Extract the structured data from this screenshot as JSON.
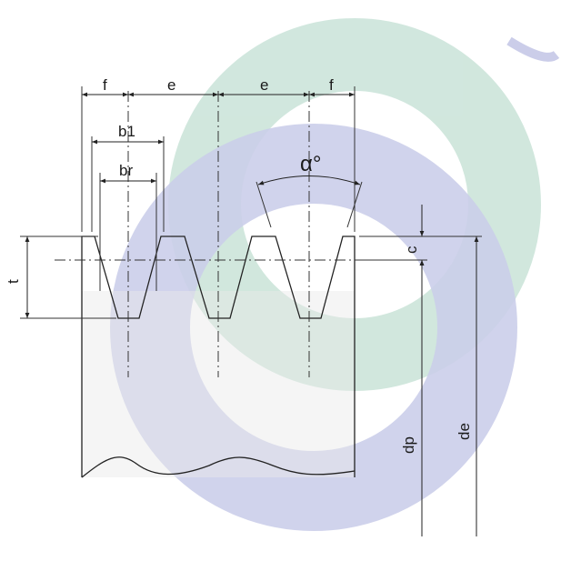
{
  "labels": {
    "f_left": "f",
    "e_left": "e",
    "e_right": "e",
    "f_right": "f",
    "b1": "b1",
    "br": "br",
    "alpha": "α°",
    "t": "t",
    "c": "c",
    "dp": "dp",
    "de": "de"
  },
  "colors": {
    "watermark_teal": "#c9e3d8",
    "watermark_blue": "#c2c5e6",
    "line": "#222222"
  }
}
